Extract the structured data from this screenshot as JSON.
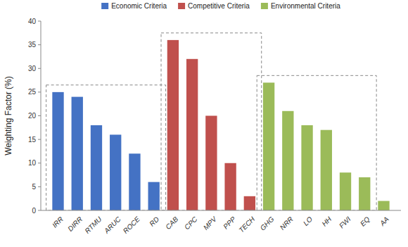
{
  "chart_data": {
    "type": "bar",
    "categories": [
      "IRR",
      "DIRR",
      "RTMU",
      "ARUC",
      "ROCE",
      "RD",
      "CAB",
      "CPC",
      "MPV",
      "PPP",
      "TECH",
      "GHG",
      "NRR",
      "LO",
      "HH",
      "FWI",
      "EQ",
      "AA"
    ],
    "values": [
      25,
      24,
      18,
      16,
      12,
      6,
      36,
      32,
      20,
      10,
      3,
      27,
      21,
      18,
      17,
      8,
      7,
      2
    ],
    "colors": [
      "#4472C4",
      "#4472C4",
      "#4472C4",
      "#4472C4",
      "#4472C4",
      "#4472C4",
      "#C0504D",
      "#C0504D",
      "#C0504D",
      "#C0504D",
      "#C0504D",
      "#9BBB59",
      "#9BBB59",
      "#9BBB59",
      "#9BBB59",
      "#9BBB59",
      "#9BBB59",
      "#9BBB59"
    ],
    "ylabel": "Weighting Factor (%)",
    "ylim": [
      0,
      40
    ],
    "yticks": [
      0,
      5,
      10,
      15,
      20,
      25,
      30,
      35,
      40
    ],
    "legend": "top",
    "groups": [
      {
        "name": "Economic Criteria",
        "color": "#4472C4",
        "first": "IRR",
        "last": "RD",
        "box_top": 26.5
      },
      {
        "name": "Competitive Criteria",
        "color": "#C0504D",
        "first": "CAB",
        "last": "TECH",
        "box_top": 37.5
      },
      {
        "name": "Environmental Criteria",
        "color": "#9BBB59",
        "first": "GHG",
        "last": "EQ",
        "box_top": 28.5
      }
    ]
  }
}
